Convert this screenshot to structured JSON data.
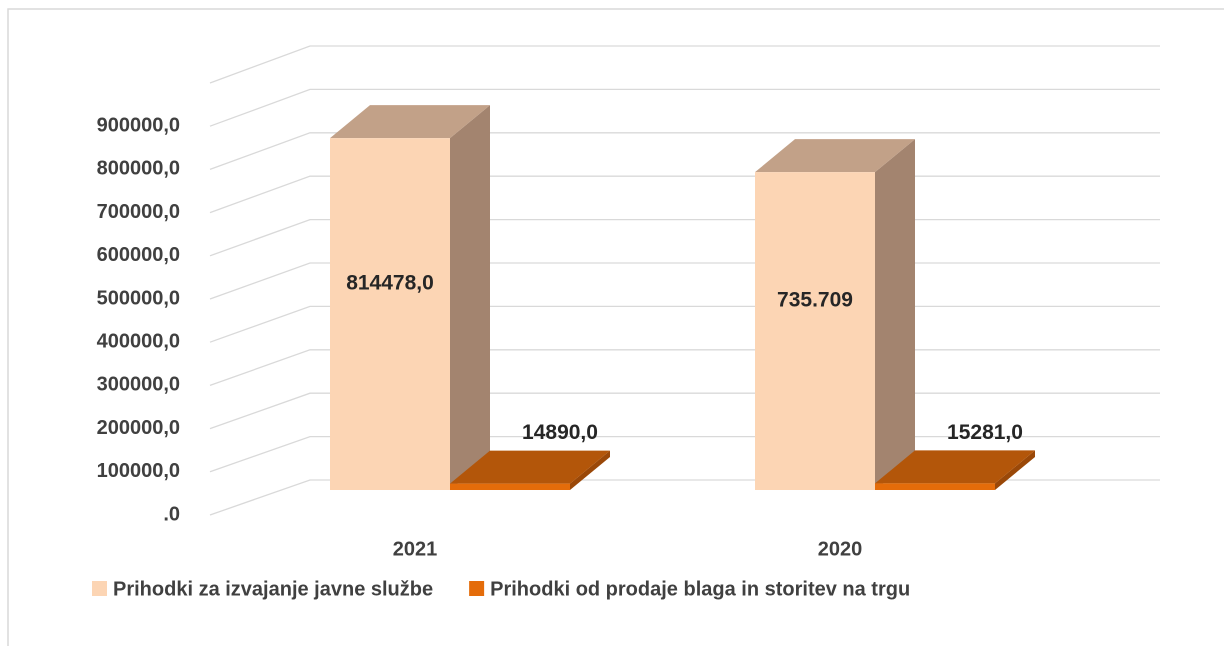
{
  "chart_data": {
    "type": "bar3d",
    "categories": [
      "2021",
      "2020"
    ],
    "series": [
      {
        "name": "Prihodki za izvajanje javne službe",
        "color": "#fcd5b4",
        "top_color": "#c2a188",
        "side_color": "#a3846f",
        "values": [
          814478,
          735709
        ],
        "value_labels": [
          "814478,0",
          "735.709"
        ]
      },
      {
        "name": "Prihodki od prodaje blaga in storitev na trgu",
        "color": "#e46c0a",
        "top_color": "#b3560a",
        "side_color": "#9a4808",
        "values": [
          14890,
          15281
        ],
        "value_labels": [
          "14890,0",
          "15281,0"
        ]
      }
    ],
    "ylim": [
      0,
      1000000
    ],
    "yticks": [
      {
        "value": 0,
        "label": ".0"
      },
      {
        "value": 100000,
        "label": "100000,0"
      },
      {
        "value": 200000,
        "label": "200000,0"
      },
      {
        "value": 300000,
        "label": "300000,0"
      },
      {
        "value": 400000,
        "label": "400000,0"
      },
      {
        "value": 500000,
        "label": "500000,0"
      },
      {
        "value": 600000,
        "label": "600000,0"
      },
      {
        "value": 700000,
        "label": "700000,0"
      },
      {
        "value": 800000,
        "label": "800000,0"
      },
      {
        "value": 900000,
        "label": "900000,0"
      }
    ],
    "grid": true
  }
}
